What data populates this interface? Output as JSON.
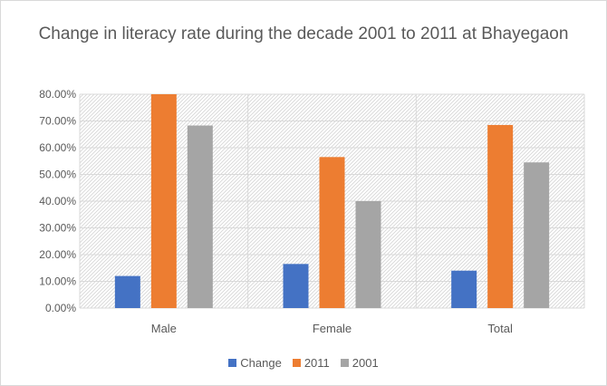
{
  "chart_data": {
    "type": "bar",
    "title": "Change in literacy rate during the decade 2001 to 2011 at Bhayegaon",
    "categories": [
      "Male",
      "Female",
      "Total"
    ],
    "series": [
      {
        "name": "Change",
        "color": "#4472c4",
        "values": [
          0.12,
          0.165,
          0.14
        ]
      },
      {
        "name": "2011",
        "color": "#ed7d31",
        "values": [
          0.8,
          0.565,
          0.685
        ]
      },
      {
        "name": "2001",
        "color": "#a5a5a5",
        "values": [
          0.683,
          0.4,
          0.545
        ]
      }
    ],
    "ylim": [
      0,
      0.8
    ],
    "yticks": [
      "0.00%",
      "10.00%",
      "20.00%",
      "30.00%",
      "40.00%",
      "50.00%",
      "60.00%",
      "70.00%",
      "80.00%"
    ],
    "grid": true,
    "legend": "bottom"
  }
}
